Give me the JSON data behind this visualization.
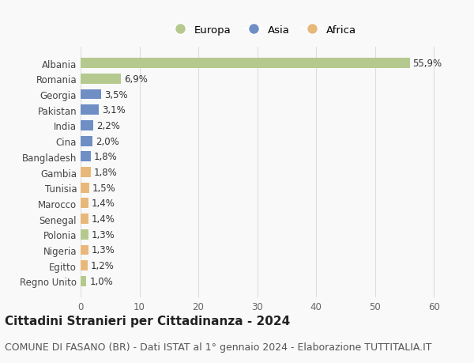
{
  "categories": [
    "Albania",
    "Romania",
    "Georgia",
    "Pakistan",
    "India",
    "Cina",
    "Bangladesh",
    "Gambia",
    "Tunisia",
    "Marocco",
    "Senegal",
    "Polonia",
    "Nigeria",
    "Egitto",
    "Regno Unito"
  ],
  "values": [
    55.9,
    6.9,
    3.5,
    3.1,
    2.2,
    2.0,
    1.8,
    1.8,
    1.5,
    1.4,
    1.4,
    1.3,
    1.3,
    1.2,
    1.0
  ],
  "labels": [
    "55,9%",
    "6,9%",
    "3,5%",
    "3,1%",
    "2,2%",
    "2,0%",
    "1,8%",
    "1,8%",
    "1,5%",
    "1,4%",
    "1,4%",
    "1,3%",
    "1,3%",
    "1,2%",
    "1,0%"
  ],
  "continent": [
    "Europa",
    "Europa",
    "Asia",
    "Asia",
    "Asia",
    "Asia",
    "Asia",
    "Africa",
    "Africa",
    "Africa",
    "Africa",
    "Europa",
    "Africa",
    "Africa",
    "Europa"
  ],
  "colors": {
    "Europa": "#b5c98e",
    "Asia": "#6e8ec4",
    "Africa": "#e8b87a"
  },
  "xlim": [
    0,
    62
  ],
  "xticks": [
    0,
    10,
    20,
    30,
    40,
    50,
    60
  ],
  "title": "Cittadini Stranieri per Cittadinanza - 2024",
  "subtitle": "COMUNE DI FASANO (BR) - Dati ISTAT al 1° gennaio 2024 - Elaborazione TUTTITALIA.IT",
  "background_color": "#f9f9f9",
  "grid_color": "#dddddd",
  "bar_height": 0.65,
  "title_fontsize": 11,
  "subtitle_fontsize": 9,
  "tick_fontsize": 8.5,
  "label_fontsize": 8.5
}
